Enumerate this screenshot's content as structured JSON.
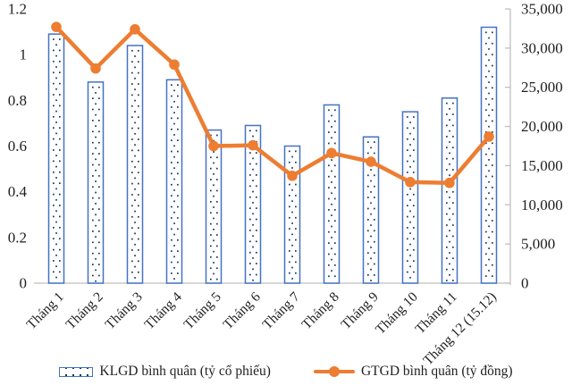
{
  "chart_data": {
    "type": "bar",
    "subtype": "combo-bar-line-dual-axis",
    "title": "",
    "categories": [
      "Tháng 1",
      "Tháng 2",
      "Tháng 3",
      "Tháng 4",
      "Tháng 5",
      "Tháng 6",
      "Tháng 7",
      "Tháng 8",
      "Tháng 9",
      "Tháng 10",
      "Tháng 11",
      "Tháng 12 (15.12)"
    ],
    "series": [
      {
        "name": "KLGD bình quân (tỷ cổ phiếu)",
        "type": "bar",
        "axis": "left",
        "values": [
          1.09,
          0.88,
          1.04,
          0.89,
          0.67,
          0.69,
          0.6,
          0.78,
          0.64,
          0.75,
          0.81,
          1.12
        ]
      },
      {
        "name": "GTGD bình quân (tỷ đồng)",
        "type": "line",
        "axis": "right",
        "values": [
          32700,
          27400,
          32400,
          27900,
          17500,
          17600,
          13700,
          16600,
          15500,
          12900,
          12800,
          18700
        ]
      }
    ],
    "left_axis": {
      "min": 0,
      "max": 1.2,
      "tick_labels": [
        "0",
        "0.2",
        "0.4",
        "0.6",
        "0.8",
        "1",
        "1.2"
      ]
    },
    "right_axis": {
      "min": 0,
      "max": 35000,
      "tick_labels": [
        "0",
        "5,000",
        "10,000",
        "15,000",
        "20,000",
        "25,000",
        "30,000",
        "35,000"
      ]
    },
    "legend_position": "bottom",
    "grid": false,
    "colors": {
      "bar_border": "#4472C4",
      "bar_fill": "#ffffff",
      "bar_dot": "#17375E",
      "line": "#ED7D31",
      "axis_line": "#BFBFBF",
      "text": "#1f1f1f"
    }
  }
}
